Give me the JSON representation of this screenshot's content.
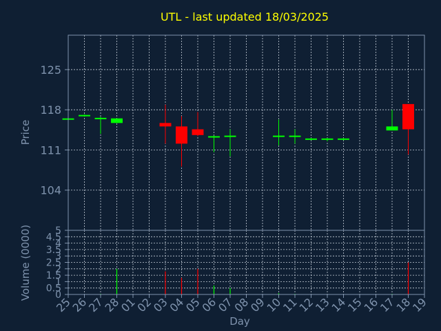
{
  "colors": {
    "background": "#0f1f33",
    "axis": "#7f93ad",
    "grid": "#c8d0da",
    "title": "#ffff00",
    "label": "#7f93ad",
    "up": "#00ff00",
    "down": "#ff0000"
  },
  "chart_data": [
    {
      "type": "candlestick",
      "title": "UTL - last updated 18/03/2025",
      "ylabel": "Price",
      "xlabel": "",
      "grid": true,
      "ylim": [
        97,
        131
      ],
      "yticks": [
        104,
        111,
        118,
        125
      ],
      "categories": [
        "25",
        "26",
        "27",
        "28",
        "01",
        "02",
        "03",
        "04",
        "05",
        "06",
        "07",
        "08",
        "09",
        "10",
        "11",
        "12",
        "13",
        "14",
        "15",
        "16",
        "17",
        "18",
        "19"
      ],
      "candles": [
        {
          "x": "25",
          "open": 116.3,
          "close": 116.5,
          "high": 116.6,
          "low": 116.2
        },
        {
          "x": "26",
          "open": 116.9,
          "close": 117.1,
          "high": 117.2,
          "low": 116.8
        },
        {
          "x": "27",
          "open": 116.4,
          "close": 116.6,
          "high": 116.8,
          "low": 113.8
        },
        {
          "x": "28",
          "open": 115.7,
          "close": 116.5,
          "high": 116.5,
          "low": 115.7
        },
        {
          "x": "03",
          "open": 115.7,
          "close": 115.1,
          "high": 118.9,
          "low": 112.1
        },
        {
          "x": "04",
          "open": 115.1,
          "close": 112.1,
          "high": 116.9,
          "low": 108.1
        },
        {
          "x": "05",
          "open": 114.6,
          "close": 113.6,
          "high": 117.6,
          "low": 113.4
        },
        {
          "x": "06",
          "open": 113.2,
          "close": 113.4,
          "high": 113.5,
          "low": 110.6
        },
        {
          "x": "07",
          "open": 113.3,
          "close": 113.5,
          "high": 114.6,
          "low": 109.9
        },
        {
          "x": "10",
          "open": 113.3,
          "close": 113.5,
          "high": 116.3,
          "low": 111.8
        },
        {
          "x": "11",
          "open": 113.3,
          "close": 113.5,
          "high": 114.6,
          "low": 112.1
        },
        {
          "x": "12",
          "open": 112.8,
          "close": 113.0,
          "high": 113.1,
          "low": 112.7
        },
        {
          "x": "13",
          "open": 112.8,
          "close": 113.0,
          "high": 113.1,
          "low": 112.5
        },
        {
          "x": "14",
          "open": 112.8,
          "close": 113.0,
          "high": 113.1,
          "low": 112.7
        },
        {
          "x": "17",
          "open": 114.4,
          "close": 115.1,
          "high": 118.0,
          "low": 114.4
        },
        {
          "x": "18",
          "open": 119.0,
          "close": 114.6,
          "high": 119.0,
          "low": 110.2
        }
      ]
    },
    {
      "type": "bar",
      "ylabel": "Volume (0000)",
      "xlabel": "Day",
      "grid": true,
      "ylim": [
        0,
        5
      ],
      "yticks": [
        "0",
        "0.5",
        "1",
        "1.5",
        "2",
        "2.5",
        "3",
        "3.5",
        "4",
        "4.5",
        "5"
      ],
      "categories": [
        "25",
        "26",
        "27",
        "28",
        "01",
        "02",
        "03",
        "04",
        "05",
        "06",
        "07",
        "08",
        "09",
        "10",
        "11",
        "12",
        "13",
        "14",
        "15",
        "16",
        "17",
        "18",
        "19"
      ],
      "bars": [
        {
          "x": "27",
          "value": 0.05,
          "color": "up"
        },
        {
          "x": "28",
          "value": 2.0,
          "color": "up"
        },
        {
          "x": "03",
          "value": 1.8,
          "color": "down"
        },
        {
          "x": "04",
          "value": 1.3,
          "color": "down"
        },
        {
          "x": "05",
          "value": 2.0,
          "color": "down"
        },
        {
          "x": "06",
          "value": 0.7,
          "color": "up"
        },
        {
          "x": "07",
          "value": 0.5,
          "color": "up"
        },
        {
          "x": "10",
          "value": 0.1,
          "color": "up"
        },
        {
          "x": "11",
          "value": 0.05,
          "color": "up"
        },
        {
          "x": "17",
          "value": 0.05,
          "color": "up"
        },
        {
          "x": "18",
          "value": 2.5,
          "color": "down"
        }
      ]
    }
  ]
}
